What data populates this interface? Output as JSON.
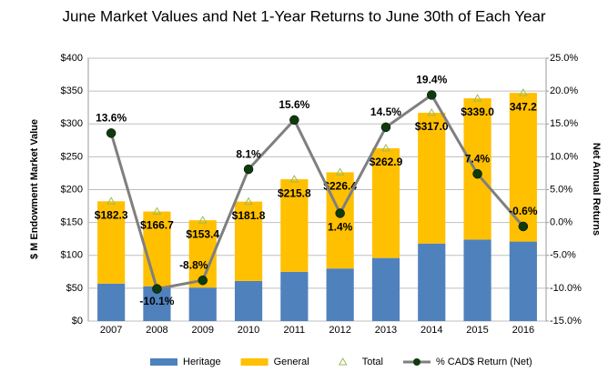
{
  "chart_data": {
    "type": "bar",
    "stacked": true,
    "title": "June Market Values and Net 1-Year Returns to June 30th of Each Year",
    "ylabel": "$ M Endowment Market Value",
    "y2label": "Net Annual Returns",
    "categories": [
      "2007",
      "2008",
      "2009",
      "2010",
      "2011",
      "2012",
      "2013",
      "2014",
      "2015",
      "2016"
    ],
    "series": [
      {
        "name": "Heritage",
        "color": "#4f81bd",
        "values": [
          57,
          53,
          51,
          61,
          75,
          80,
          96,
          118,
          124,
          121
        ]
      },
      {
        "name": "General",
        "color": "#ffc000",
        "values": [
          125.3,
          113.7,
          102.4,
          120.8,
          140.8,
          146.4,
          166.9,
          199.0,
          215.0,
          226.2
        ]
      },
      {
        "name": "Total",
        "type": "marker",
        "color": "#9bbb59",
        "values": [
          182.3,
          166.7,
          153.4,
          181.8,
          215.8,
          226.4,
          262.9,
          317.0,
          339.0,
          347.2
        ],
        "value_labels": [
          "$182.3",
          "$166.7",
          "$153.4",
          "$181.8",
          "$215.8",
          "$226.4",
          "$262.9",
          "$317.0",
          "$339.0",
          "347.2"
        ]
      },
      {
        "name": "% CAD$ Return (Net)",
        "type": "line",
        "axis": "y2",
        "color": "#7f7f7f",
        "marker_color": "#0d3b0d",
        "values": [
          13.6,
          -10.1,
          -8.8,
          8.1,
          15.6,
          1.4,
          14.5,
          19.4,
          7.4,
          -0.6
        ],
        "value_labels": [
          "13.6%",
          "-10.1%",
          "-8.8%",
          "8.1%",
          "15.6%",
          "1.4%",
          "14.5%",
          "19.4%",
          "7.4%",
          "-0.6%"
        ]
      }
    ],
    "ylim": [
      0,
      400
    ],
    "yticks": [
      {
        "value": 0,
        "label": "$0"
      },
      {
        "value": 50,
        "label": "$50"
      },
      {
        "value": 100,
        "label": "$100"
      },
      {
        "value": 150,
        "label": "$150"
      },
      {
        "value": 200,
        "label": "$200"
      },
      {
        "value": 250,
        "label": "$250"
      },
      {
        "value": 300,
        "label": "$300"
      },
      {
        "value": 350,
        "label": "$350"
      },
      {
        "value": 400,
        "label": "$400"
      }
    ],
    "y2lim": [
      -15,
      25
    ],
    "y2ticks": [
      {
        "value": -15,
        "label": "-15.0%"
      },
      {
        "value": -10,
        "label": "-10.0%"
      },
      {
        "value": -5,
        "label": "-5.0%"
      },
      {
        "value": 0,
        "label": "0.0%"
      },
      {
        "value": 5,
        "label": "5.0%"
      },
      {
        "value": 10,
        "label": "10.0%"
      },
      {
        "value": 15,
        "label": "15.0%"
      },
      {
        "value": 20,
        "label": "20.0%"
      },
      {
        "value": 25,
        "label": "25.0%"
      }
    ],
    "grid": true,
    "legend": "bottom"
  }
}
